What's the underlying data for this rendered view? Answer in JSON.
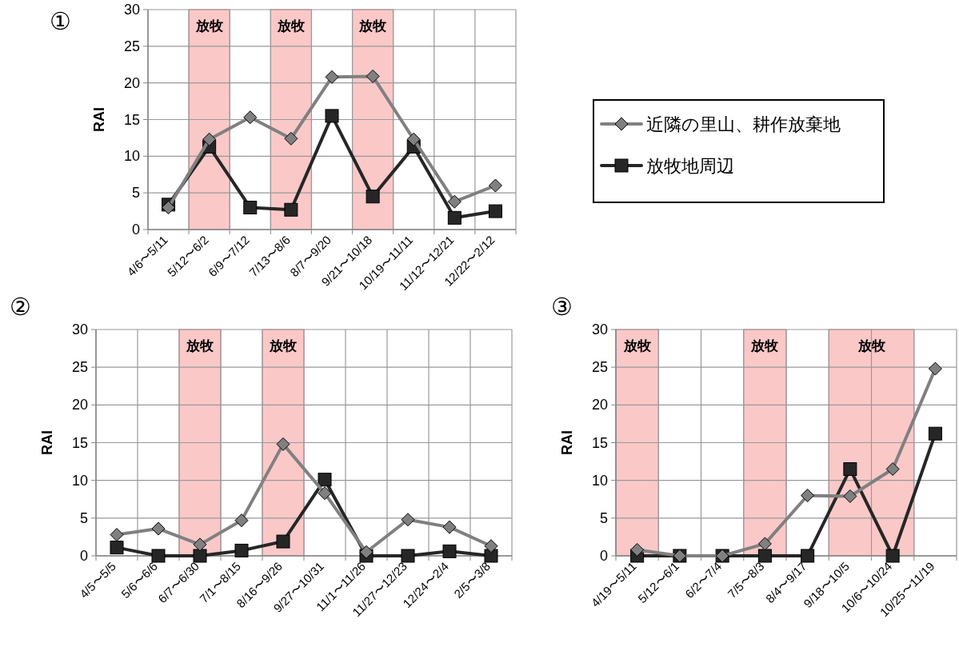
{
  "chart_data": [
    {
      "type": "line",
      "title": "①",
      "ylabel": "RAI",
      "categories": [
        "4/6〜5/11",
        "5/12〜6/2",
        "6/9〜7/12",
        "7/13〜8/6",
        "8/7〜9/20",
        "9/21〜10/18",
        "10/19〜11/11",
        "11/12〜12/21",
        "12/22〜2/12"
      ],
      "series": [
        {
          "name": "近隣の里山、耕作放棄地",
          "color": "#808080",
          "marker": "diamond",
          "values": [
            3.0,
            12.3,
            15.3,
            12.4,
            20.8,
            20.9,
            12.3,
            3.8,
            6.0
          ]
        },
        {
          "name": "放牧地周辺",
          "color": "#262626",
          "marker": "square",
          "values": [
            3.4,
            11.3,
            3.0,
            2.7,
            15.5,
            4.5,
            11.3,
            1.6,
            2.5
          ]
        }
      ],
      "bands": [
        {
          "axis": "x",
          "from": "5/12〜6/2",
          "to": "5/12〜6/2",
          "label": "放牧",
          "color": "#fbc8c8"
        },
        {
          "axis": "x",
          "from": "7/13〜8/6",
          "to": "7/13〜8/6",
          "label": "放牧",
          "color": "#fbc8c8"
        },
        {
          "axis": "x",
          "from": "9/21〜10/18",
          "to": "9/21〜10/18",
          "label": "放牧",
          "color": "#fbc8c8"
        }
      ],
      "ylim": [
        0,
        30
      ],
      "yticks": [
        0,
        5,
        10,
        15,
        20,
        25,
        30
      ],
      "grid": true,
      "legend": "right"
    },
    {
      "type": "line",
      "title": "②",
      "ylabel": "RAI",
      "categories": [
        "4/5〜5/5",
        "5/6〜6/6",
        "6/7〜6/30",
        "7/1〜8/15",
        "8/16〜9/26",
        "9/27〜10/31",
        "11/1〜11/26",
        "11/27〜12/23",
        "12/24〜2/4",
        "2/5〜3/8"
      ],
      "series": [
        {
          "color": "#808080",
          "marker": "diamond",
          "values": [
            2.8,
            3.6,
            1.5,
            4.7,
            14.8,
            8.3,
            0.5,
            4.8,
            3.8,
            1.3
          ]
        },
        {
          "color": "#262626",
          "marker": "square",
          "values": [
            1.1,
            0,
            0,
            0.7,
            1.9,
            10.1,
            0,
            0,
            0.6,
            0
          ]
        }
      ],
      "bands": [
        {
          "axis": "x",
          "from": "6/7〜6/30",
          "to": "6/7〜6/30",
          "label": "放牧",
          "color": "#fbc8c8"
        },
        {
          "axis": "x",
          "from": "8/16〜9/26",
          "to": "8/16〜9/26",
          "label": "放牧",
          "color": "#fbc8c8"
        }
      ],
      "ylim": [
        0,
        30
      ],
      "yticks": [
        0,
        5,
        10,
        15,
        20,
        25,
        30
      ],
      "grid": true
    },
    {
      "type": "line",
      "title": "③",
      "ylabel": "RAI",
      "categories": [
        "4/19〜5/11",
        "5/12〜6/1",
        "6/2〜7/4",
        "7/5〜8/3",
        "8/4〜9/17",
        "9/18〜10/5",
        "10/6〜10/24",
        "10/25〜11/19"
      ],
      "series": [
        {
          "color": "#808080",
          "marker": "diamond",
          "values": [
            0.8,
            0,
            0,
            1.6,
            8.0,
            7.9,
            11.5,
            24.8
          ]
        },
        {
          "color": "#262626",
          "marker": "square",
          "values": [
            0,
            0,
            0,
            0,
            0,
            11.5,
            0,
            16.2
          ]
        }
      ],
      "bands": [
        {
          "axis": "x",
          "from": "4/19〜5/11",
          "to": "4/19〜5/11",
          "label": "放牧",
          "color": "#fbc8c8"
        },
        {
          "axis": "x",
          "from": "7/5〜8/3",
          "to": "7/5〜8/3",
          "label": "放牧",
          "color": "#fbc8c8"
        },
        {
          "axis": "x",
          "from": "9/18〜10/5",
          "to": "10/6〜10/24",
          "label": "放牧",
          "color": "#fbc8c8"
        }
      ],
      "ylim": [
        0,
        30
      ],
      "yticks": [
        0,
        5,
        10,
        15,
        20,
        25,
        30
      ],
      "grid": true
    }
  ]
}
